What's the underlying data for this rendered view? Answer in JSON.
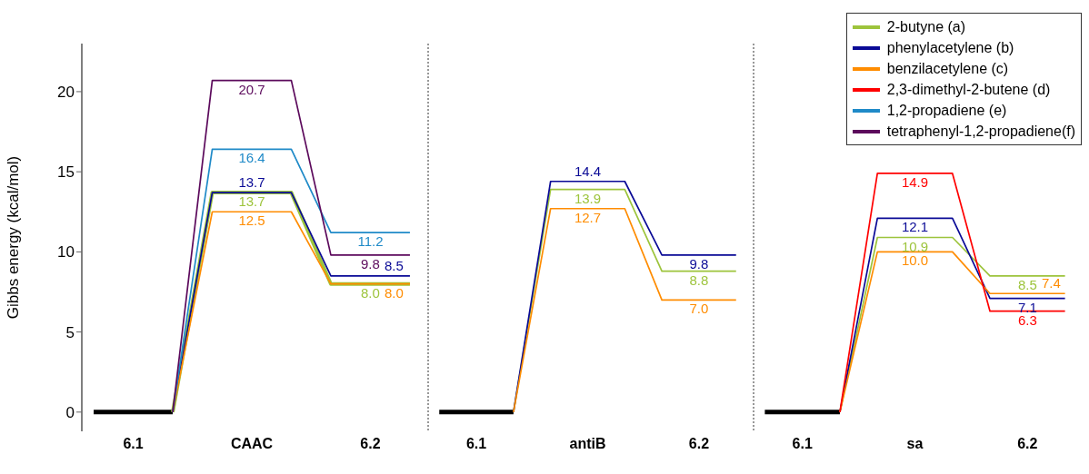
{
  "chart_data": [
    {
      "type": "line",
      "ylabel": "Gibbs energy (kcal/mol)",
      "categories": [
        null,
        "6.1",
        null,
        null,
        "CAAC",
        null,
        null,
        "6.2",
        null
      ],
      "ylim": [
        -1.2,
        23
      ],
      "yticks": [
        0,
        5,
        10,
        15,
        20
      ],
      "grid": false,
      "series": [
        {
          "color": "#000000",
          "values": [
            0,
            0,
            0,
            null,
            null,
            null,
            null,
            null,
            null
          ]
        },
        {
          "color": "#9dc43c",
          "values": [
            null,
            null,
            0,
            13.7,
            13.7,
            13.7,
            8.0,
            8.0,
            8.0
          ],
          "value_labels": [
            null,
            null,
            null,
            null,
            "13.7",
            null,
            null,
            "8.0",
            null
          ]
        },
        {
          "color": "#0a0a96",
          "values": [
            null,
            null,
            0,
            13.7,
            13.7,
            13.7,
            8.5,
            8.5,
            8.5
          ],
          "value_labels": [
            null,
            null,
            null,
            null,
            "13.7",
            null,
            null,
            "8.5",
            null
          ]
        },
        {
          "color": "#ff8c00",
          "values": [
            null,
            null,
            0,
            12.5,
            12.5,
            12.5,
            8.0,
            8.0,
            8.0
          ],
          "value_labels": [
            null,
            null,
            null,
            null,
            "12.5",
            null,
            null,
            "8.0",
            null
          ]
        },
        {
          "color": "#1f8ac8",
          "values": [
            null,
            null,
            0,
            16.4,
            16.4,
            16.4,
            11.2,
            11.2,
            11.2
          ],
          "value_labels": [
            null,
            null,
            null,
            null,
            "16.4",
            null,
            null,
            "11.2",
            null
          ]
        },
        {
          "color": "#5c0a5c",
          "values": [
            null,
            null,
            0,
            20.7,
            20.7,
            20.7,
            9.8,
            9.8,
            9.8
          ],
          "value_labels": [
            null,
            null,
            null,
            null,
            "20.7",
            null,
            null,
            "9.8",
            null
          ]
        }
      ]
    },
    {
      "type": "line",
      "categories": [
        null,
        "6.1",
        null,
        null,
        "antiB",
        null,
        null,
        "6.2",
        null
      ],
      "ylim": [
        -1.2,
        23
      ],
      "yticks": [
        0,
        5,
        10,
        15,
        20
      ],
      "tick_labels": "x",
      "grid": false,
      "series": [
        {
          "color": "#000000",
          "values": [
            0,
            0,
            0,
            null,
            null,
            null,
            null,
            null,
            null
          ]
        },
        {
          "color": "#9dc43c",
          "values": [
            null,
            null,
            0,
            13.9,
            13.9,
            13.9,
            8.8,
            8.8,
            8.8
          ],
          "value_labels": [
            null,
            null,
            null,
            null,
            "13.9",
            null,
            null,
            "8.8",
            null
          ]
        },
        {
          "color": "#0a0a96",
          "values": [
            null,
            null,
            0,
            14.4,
            14.4,
            14.4,
            9.8,
            9.8,
            9.8
          ],
          "value_labels": [
            null,
            null,
            null,
            null,
            "14.4",
            null,
            null,
            "9.8",
            null
          ]
        },
        {
          "color": "#ff8c00",
          "values": [
            null,
            null,
            0,
            12.7,
            12.7,
            12.7,
            7.0,
            7.0,
            7.0
          ],
          "value_labels": [
            null,
            null,
            null,
            null,
            "12.7",
            null,
            null,
            "7.0",
            null
          ]
        }
      ]
    },
    {
      "type": "line",
      "categories": [
        null,
        "6.1",
        null,
        null,
        "sa",
        null,
        null,
        "6.2",
        null
      ],
      "ylim": [
        -1.2,
        23
      ],
      "yticks": [
        0,
        5,
        10,
        15,
        20
      ],
      "tick_labels": "x",
      "grid": false,
      "legend": "top right",
      "series": [
        {
          "color": "#000000",
          "values": [
            0,
            0,
            0,
            null,
            null,
            null,
            null,
            null,
            null
          ]
        },
        {
          "name": "2-butyne (a)",
          "color": "#9dc43c",
          "values": [
            null,
            null,
            0,
            10.9,
            10.9,
            10.9,
            8.5,
            8.5,
            8.5
          ],
          "value_labels": [
            null,
            null,
            null,
            null,
            "10.9",
            null,
            null,
            "8.5",
            null
          ]
        },
        {
          "name": "phenylacetylene (b)",
          "color": "#0a0a96",
          "values": [
            null,
            null,
            0,
            12.1,
            12.1,
            12.1,
            7.1,
            7.1,
            7.1
          ],
          "value_labels": [
            null,
            null,
            null,
            null,
            "12.1",
            null,
            null,
            "7.1",
            null
          ]
        },
        {
          "name": "benzilacetylene (c)",
          "color": "#ff8c00",
          "values": [
            null,
            null,
            0,
            10.0,
            10.0,
            10.0,
            7.4,
            7.4,
            7.4
          ],
          "value_labels": [
            null,
            null,
            null,
            null,
            "10.0",
            null,
            null,
            "7.4",
            null
          ]
        },
        {
          "name": "2,3-dimethyl-2-butene (d)",
          "color": "#ff0000",
          "values": [
            null,
            null,
            0,
            14.9,
            14.9,
            14.9,
            6.3,
            6.3,
            6.3
          ],
          "value_labels": [
            null,
            null,
            null,
            null,
            "14.9",
            null,
            null,
            "6.3",
            null
          ]
        },
        {
          "name": "1,2-propadiene (e)",
          "color": "#1f8ac8",
          "values": [
            null,
            null,
            null,
            null,
            null,
            null,
            null,
            null,
            null
          ]
        },
        {
          "name": "tetraphenyl-1,2-propadiene(f)",
          "color": "#5c0a5c",
          "values": [
            null,
            null,
            null,
            null,
            null,
            null,
            null,
            null,
            null
          ]
        }
      ]
    }
  ]
}
